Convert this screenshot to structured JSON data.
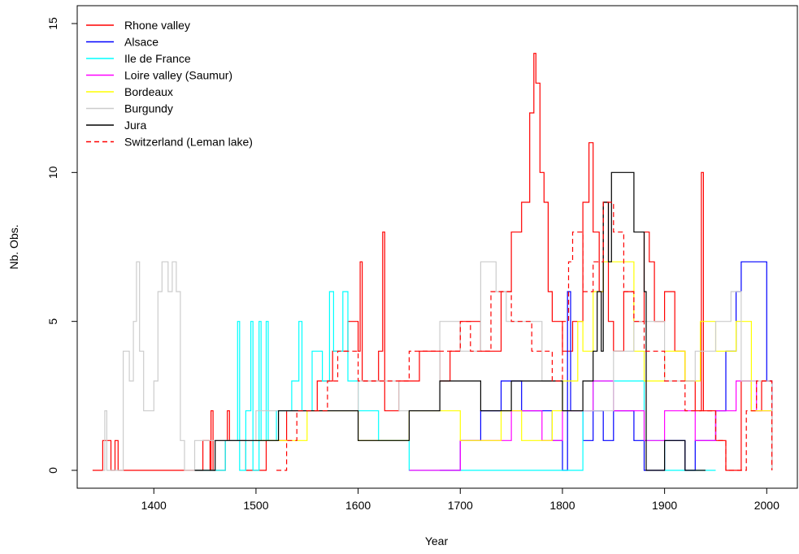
{
  "chart_data": {
    "type": "line",
    "step": true,
    "title": "",
    "xlabel": "Year",
    "ylabel": "Nb. Obs.",
    "xlim": [
      1325,
      2030
    ],
    "ylim": [
      -0.6,
      15.6
    ],
    "xticks": [
      1400,
      1500,
      1600,
      1700,
      1800,
      1900,
      2000
    ],
    "yticks": [
      0,
      5,
      10,
      15
    ],
    "grid": false,
    "legend_position": "top-left",
    "series": [
      {
        "name": "Rhone valley",
        "color": "#ff0000",
        "dash": "none",
        "points": [
          [
            1340,
            0
          ],
          [
            1350,
            1
          ],
          [
            1358,
            0
          ],
          [
            1362,
            1
          ],
          [
            1365,
            0
          ],
          [
            1440,
            0
          ],
          [
            1448,
            1
          ],
          [
            1455,
            0
          ],
          [
            1456,
            2
          ],
          [
            1458,
            0
          ],
          [
            1470,
            1
          ],
          [
            1472,
            2
          ],
          [
            1474,
            1
          ],
          [
            1490,
            0
          ],
          [
            1500,
            0
          ],
          [
            1510,
            1
          ],
          [
            1530,
            2
          ],
          [
            1560,
            3
          ],
          [
            1575,
            4
          ],
          [
            1590,
            5
          ],
          [
            1600,
            4
          ],
          [
            1602,
            7
          ],
          [
            1604,
            3
          ],
          [
            1620,
            4
          ],
          [
            1624,
            8
          ],
          [
            1626,
            2
          ],
          [
            1640,
            3
          ],
          [
            1660,
            4
          ],
          [
            1680,
            3
          ],
          [
            1690,
            4
          ],
          [
            1700,
            5
          ],
          [
            1720,
            4
          ],
          [
            1740,
            6
          ],
          [
            1750,
            8
          ],
          [
            1760,
            9
          ],
          [
            1768,
            12
          ],
          [
            1772,
            14
          ],
          [
            1774,
            13
          ],
          [
            1778,
            10
          ],
          [
            1782,
            9
          ],
          [
            1786,
            6
          ],
          [
            1790,
            5
          ],
          [
            1800,
            4
          ],
          [
            1810,
            5
          ],
          [
            1820,
            9
          ],
          [
            1826,
            11
          ],
          [
            1830,
            8
          ],
          [
            1836,
            6
          ],
          [
            1840,
            9
          ],
          [
            1845,
            5
          ],
          [
            1850,
            4
          ],
          [
            1860,
            6
          ],
          [
            1870,
            5
          ],
          [
            1880,
            8
          ],
          [
            1885,
            7
          ],
          [
            1890,
            5
          ],
          [
            1900,
            6
          ],
          [
            1910,
            4
          ],
          [
            1920,
            3
          ],
          [
            1930,
            2
          ],
          [
            1936,
            10
          ],
          [
            1938,
            2
          ],
          [
            1950,
            1
          ],
          [
            1960,
            0
          ],
          [
            1975,
            3
          ],
          [
            1985,
            2
          ],
          [
            1995,
            3
          ],
          [
            2005,
            0
          ]
        ]
      },
      {
        "name": "Alsace",
        "color": "#0000ff",
        "dash": "none",
        "points": [
          [
            1680,
            0
          ],
          [
            1700,
            1
          ],
          [
            1720,
            2
          ],
          [
            1740,
            3
          ],
          [
            1760,
            2
          ],
          [
            1790,
            1
          ],
          [
            1800,
            0
          ],
          [
            1805,
            6
          ],
          [
            1808,
            2
          ],
          [
            1820,
            1
          ],
          [
            1830,
            2
          ],
          [
            1840,
            1
          ],
          [
            1850,
            2
          ],
          [
            1870,
            1
          ],
          [
            1880,
            0
          ],
          [
            1900,
            1
          ],
          [
            1920,
            0
          ],
          [
            1930,
            1
          ],
          [
            1950,
            2
          ],
          [
            1960,
            4
          ],
          [
            1970,
            6
          ],
          [
            1975,
            7
          ],
          [
            2000,
            3
          ],
          [
            2005,
            0
          ]
        ]
      },
      {
        "name": "Ile de France",
        "color": "#00ffff",
        "dash": "none",
        "points": [
          [
            1440,
            0
          ],
          [
            1470,
            1
          ],
          [
            1482,
            5
          ],
          [
            1484,
            0
          ],
          [
            1490,
            2
          ],
          [
            1495,
            5
          ],
          [
            1497,
            0
          ],
          [
            1503,
            5
          ],
          [
            1505,
            1
          ],
          [
            1510,
            5
          ],
          [
            1512,
            1
          ],
          [
            1520,
            2
          ],
          [
            1535,
            3
          ],
          [
            1542,
            5
          ],
          [
            1545,
            2
          ],
          [
            1555,
            4
          ],
          [
            1565,
            3
          ],
          [
            1572,
            6
          ],
          [
            1576,
            4
          ],
          [
            1585,
            6
          ],
          [
            1590,
            3
          ],
          [
            1600,
            2
          ],
          [
            1620,
            1
          ],
          [
            1650,
            0
          ],
          [
            1700,
            0
          ],
          [
            1800,
            0
          ],
          [
            1820,
            2
          ],
          [
            1830,
            3
          ],
          [
            1860,
            3
          ],
          [
            1880,
            1
          ],
          [
            1900,
            0
          ],
          [
            1950,
            0
          ]
        ]
      },
      {
        "name": "Loire valley (Saumur)",
        "color": "#ff00ff",
        "dash": "none",
        "points": [
          [
            1650,
            0
          ],
          [
            1700,
            1
          ],
          [
            1750,
            2
          ],
          [
            1780,
            1
          ],
          [
            1800,
            2
          ],
          [
            1830,
            3
          ],
          [
            1850,
            2
          ],
          [
            1880,
            1
          ],
          [
            1900,
            2
          ],
          [
            1930,
            1
          ],
          [
            1950,
            2
          ],
          [
            1970,
            3
          ],
          [
            1990,
            2
          ],
          [
            2005,
            0
          ]
        ]
      },
      {
        "name": "Bordeaux",
        "color": "#ffff00",
        "dash": "none",
        "points": [
          [
            1500,
            1
          ],
          [
            1550,
            2
          ],
          [
            1600,
            1
          ],
          [
            1650,
            2
          ],
          [
            1700,
            1
          ],
          [
            1740,
            2
          ],
          [
            1760,
            1
          ],
          [
            1790,
            2
          ],
          [
            1800,
            3
          ],
          [
            1815,
            5
          ],
          [
            1820,
            4
          ],
          [
            1830,
            6
          ],
          [
            1840,
            7
          ],
          [
            1870,
            4
          ],
          [
            1880,
            3
          ],
          [
            1900,
            4
          ],
          [
            1920,
            3
          ],
          [
            1935,
            5
          ],
          [
            1950,
            4
          ],
          [
            1970,
            5
          ],
          [
            1985,
            2
          ],
          [
            2005,
            0
          ]
        ]
      },
      {
        "name": "Burgundy",
        "color": "#cccccc",
        "dash": "none",
        "points": [
          [
            1350,
            0
          ],
          [
            1352,
            2
          ],
          [
            1354,
            0
          ],
          [
            1370,
            4
          ],
          [
            1376,
            3
          ],
          [
            1380,
            5
          ],
          [
            1383,
            7
          ],
          [
            1386,
            4
          ],
          [
            1390,
            2
          ],
          [
            1400,
            3
          ],
          [
            1404,
            6
          ],
          [
            1408,
            7
          ],
          [
            1414,
            6
          ],
          [
            1418,
            7
          ],
          [
            1422,
            6
          ],
          [
            1426,
            1
          ],
          [
            1430,
            0
          ],
          [
            1440,
            1
          ],
          [
            1500,
            2
          ],
          [
            1600,
            3
          ],
          [
            1640,
            2
          ],
          [
            1680,
            5
          ],
          [
            1700,
            4
          ],
          [
            1720,
            7
          ],
          [
            1735,
            6
          ],
          [
            1745,
            5
          ],
          [
            1780,
            3
          ],
          [
            1800,
            2
          ],
          [
            1850,
            4
          ],
          [
            1870,
            5
          ],
          [
            1900,
            3
          ],
          [
            1930,
            4
          ],
          [
            1950,
            5
          ],
          [
            1965,
            6
          ],
          [
            1975,
            3
          ],
          [
            2005,
            0
          ]
        ]
      },
      {
        "name": "Jura",
        "color": "#000000",
        "dash": "none",
        "points": [
          [
            1440,
            0
          ],
          [
            1460,
            1
          ],
          [
            1500,
            1
          ],
          [
            1522,
            2
          ],
          [
            1560,
            2
          ],
          [
            1600,
            1
          ],
          [
            1650,
            2
          ],
          [
            1680,
            3
          ],
          [
            1720,
            2
          ],
          [
            1750,
            3
          ],
          [
            1780,
            3
          ],
          [
            1800,
            2
          ],
          [
            1820,
            3
          ],
          [
            1830,
            4
          ],
          [
            1834,
            6
          ],
          [
            1838,
            4
          ],
          [
            1840,
            9
          ],
          [
            1845,
            7
          ],
          [
            1848,
            10
          ],
          [
            1870,
            8
          ],
          [
            1880,
            6
          ],
          [
            1882,
            0
          ],
          [
            1900,
            1
          ],
          [
            1920,
            0
          ],
          [
            1940,
            0
          ]
        ]
      },
      {
        "name": "Switzerland (Leman lake)",
        "color": "#ff0000",
        "dash": "6,4",
        "points": [
          [
            1520,
            0
          ],
          [
            1530,
            1
          ],
          [
            1540,
            2
          ],
          [
            1570,
            3
          ],
          [
            1580,
            4
          ],
          [
            1600,
            3
          ],
          [
            1650,
            4
          ],
          [
            1700,
            5
          ],
          [
            1710,
            4
          ],
          [
            1730,
            6
          ],
          [
            1750,
            5
          ],
          [
            1770,
            4
          ],
          [
            1790,
            3
          ],
          [
            1800,
            5
          ],
          [
            1806,
            7
          ],
          [
            1810,
            8
          ],
          [
            1820,
            6
          ],
          [
            1830,
            7
          ],
          [
            1840,
            9
          ],
          [
            1850,
            8
          ],
          [
            1860,
            6
          ],
          [
            1870,
            5
          ],
          [
            1880,
            4
          ],
          [
            1900,
            3
          ],
          [
            1920,
            2
          ],
          [
            1950,
            1
          ],
          [
            1960,
            0
          ],
          [
            1980,
            2
          ],
          [
            1990,
            3
          ],
          [
            2005,
            0
          ]
        ]
      }
    ]
  }
}
